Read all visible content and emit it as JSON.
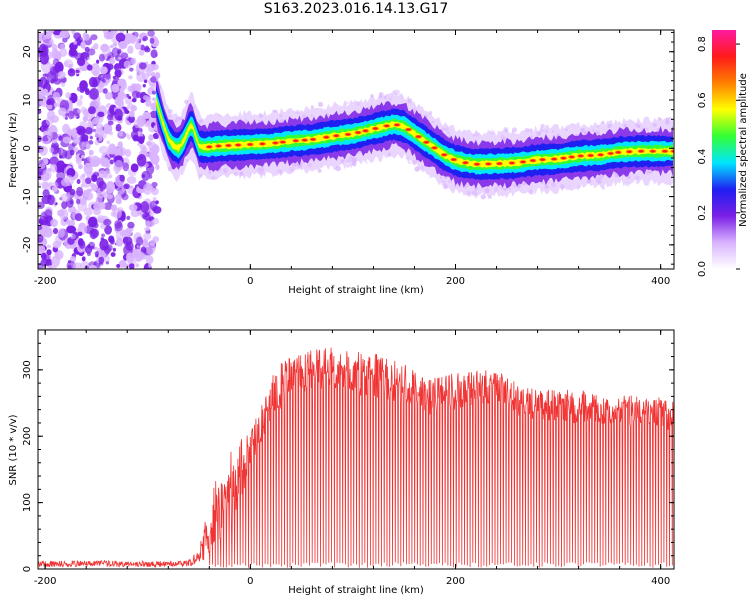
{
  "title": "S163.2023.016.14.13.G17",
  "colors": {
    "snr_line": "#f03232",
    "colormap": [
      "#ffffff",
      "#d9b3ff",
      "#7a1fe6",
      "#1f1ff2",
      "#00e6ff",
      "#33ff33",
      "#ffff00",
      "#ff8000",
      "#ff1a1a",
      "#ff1aa0"
    ]
  },
  "chart_data": [
    {
      "type": "heatmap",
      "xlabel": "Height of straight line (km)",
      "ylabel": "Frequency (Hz)",
      "xlim": [
        -207,
        413
      ],
      "ylim": [
        -25,
        24.5
      ],
      "xticks": [
        -200,
        0,
        200,
        400
      ],
      "yticks": [
        -20,
        -10,
        0,
        10,
        20
      ],
      "grid": false,
      "colorbar": {
        "label": "Normalized spectral amplitude",
        "range": [
          0,
          0.85
        ],
        "ticks": [
          "0.0",
          "0.2",
          "0.4",
          "0.6",
          "0.8"
        ]
      },
      "noise_region_x": [
        -207,
        -90
      ],
      "ridge": {
        "x": [
          -92,
          -85,
          -80,
          -75,
          -70,
          -65,
          -60,
          -57,
          -54,
          -50,
          -45,
          -40,
          -30,
          -20,
          0,
          20,
          40,
          60,
          80,
          100,
          120,
          140,
          150,
          160,
          170,
          180,
          190,
          200,
          210,
          220,
          240,
          260,
          280,
          300,
          320,
          340,
          360,
          380,
          400,
          413
        ],
        "freq_hz": [
          10,
          5,
          2,
          0.5,
          0,
          1.5,
          4,
          5,
          3,
          0.5,
          0.2,
          0.3,
          0.5,
          0.6,
          0.8,
          1,
          1.5,
          1.8,
          2.5,
          3,
          4,
          5,
          4.5,
          3,
          1.5,
          0,
          -1.5,
          -2.5,
          -3,
          -3.3,
          -3.2,
          -3,
          -2.4,
          -2.2,
          -1.6,
          -1.4,
          -0.8,
          -0.6,
          -0.6,
          -0.6
        ]
      }
    },
    {
      "type": "line",
      "xlabel": "Height of straight line (km)",
      "ylabel": "SNR (10 * v/v)",
      "xlim": [
        -207,
        413
      ],
      "ylim": [
        0,
        360
      ],
      "xticks": [
        -200,
        0,
        200,
        400
      ],
      "yticks": [
        0,
        100,
        200,
        300
      ],
      "grid": false,
      "series": [
        {
          "x": [
            -207,
            -180,
            -150,
            -120,
            -90,
            -60,
            -50,
            -45,
            -40,
            -30,
            -20,
            -10,
            0,
            10,
            20,
            30,
            40,
            60,
            80,
            100,
            120,
            140,
            160,
            180,
            200,
            220,
            240,
            260,
            280,
            300,
            320,
            340,
            360,
            380,
            400,
            413
          ],
          "upper": [
            12,
            12,
            13,
            12,
            12,
            13,
            30,
            70,
            110,
            150,
            175,
            195,
            210,
            245,
            290,
            310,
            320,
            330,
            335,
            330,
            325,
            320,
            300,
            290,
            295,
            300,
            300,
            280,
            275,
            270,
            270,
            265,
            262,
            262,
            258,
            258
          ],
          "lower": [
            3,
            3,
            4,
            3,
            3,
            4,
            6,
            10,
            25,
            40,
            60,
            100,
            150,
            190,
            220,
            240,
            260,
            270,
            270,
            260,
            260,
            250,
            240,
            230,
            240,
            245,
            250,
            230,
            225,
            220,
            220,
            215,
            215,
            215,
            210,
            210
          ]
        }
      ]
    }
  ]
}
